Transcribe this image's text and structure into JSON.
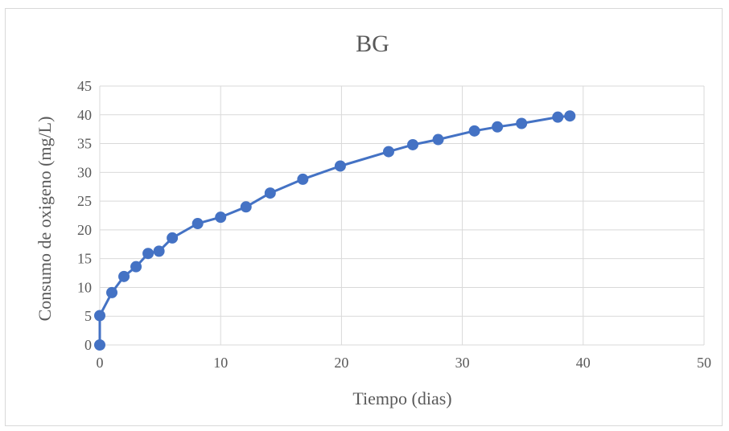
{
  "chart_data": {
    "type": "line",
    "title": "BG",
    "xlabel": "Tiempo (dias)",
    "ylabel": "Consumo de oxigeno (mg/L)",
    "xlim": [
      0,
      50
    ],
    "ylim": [
      0,
      45
    ],
    "xticks": [
      "0",
      "10",
      "20",
      "30",
      "40",
      "50"
    ],
    "yticks": [
      "0",
      "5",
      "10",
      "15",
      "20",
      "25",
      "30",
      "35",
      "40",
      "45"
    ],
    "grid": true,
    "markers": true,
    "colors": {
      "series": "#4472c4",
      "grid": "#d9d9d9",
      "text": "#595959"
    },
    "series": [
      {
        "x": [
          0,
          0,
          1,
          2,
          3,
          4,
          4.9,
          6,
          8.1,
          10,
          12.1,
          14.1,
          16.8,
          19.9,
          23.9,
          25.9,
          28,
          31,
          32.9,
          34.9,
          37.9,
          38.9
        ],
        "y": [
          0,
          5.1,
          9.1,
          11.9,
          13.6,
          15.9,
          16.3,
          18.6,
          21.1,
          22.2,
          24,
          26.4,
          28.8,
          31.1,
          33.6,
          34.8,
          35.7,
          37.2,
          37.9,
          38.5,
          39.6,
          39.8
        ]
      }
    ]
  }
}
